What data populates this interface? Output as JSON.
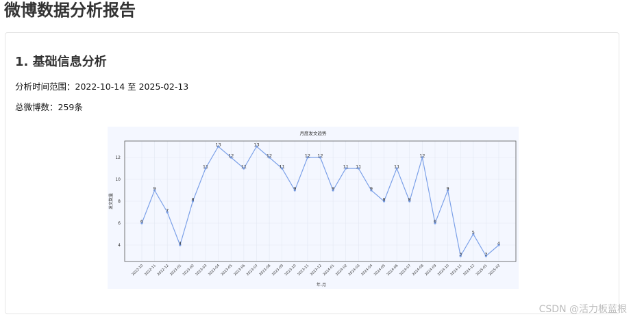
{
  "page": {
    "title": "微博数据分析报告",
    "section_title": "1. 基础信息分析",
    "time_range": "分析时间范围：2022-10-14 至 2025-02-13",
    "total_posts": "总微博数：259条"
  },
  "watermark": "CSDN @活力板蓝根",
  "colors": {
    "line": "#7ba0e8",
    "chart_bg": "#f4f7ff"
  },
  "chart_data": {
    "type": "line",
    "title": "月度发文趋势",
    "xlabel": "年-月",
    "ylabel": "发文数量",
    "x": [
      "2022-10",
      "2022-11",
      "2022-12",
      "2023-01",
      "2023-02",
      "2023-03",
      "2023-04",
      "2023-05",
      "2023-06",
      "2023-07",
      "2023-08",
      "2023-09",
      "2023-10",
      "2023-11",
      "2023-12",
      "2024-01",
      "2024-02",
      "2024-03",
      "2024-04",
      "2024-05",
      "2024-06",
      "2024-07",
      "2024-08",
      "2024-09",
      "2024-10",
      "2024-11",
      "2024-12",
      "2025-01",
      "2025-02"
    ],
    "series": [
      {
        "values": [
          6,
          9,
          7,
          4,
          8,
          11,
          13,
          12,
          11,
          13,
          12,
          11,
          9,
          12,
          12,
          9,
          11,
          11,
          9,
          8,
          11,
          8,
          12,
          6,
          9,
          3,
          5,
          3,
          4
        ]
      }
    ],
    "yticks": [
      4,
      6,
      8,
      10,
      12
    ],
    "ylim": [
      2.5,
      13.5
    ],
    "grid": true,
    "data_labels": true
  }
}
